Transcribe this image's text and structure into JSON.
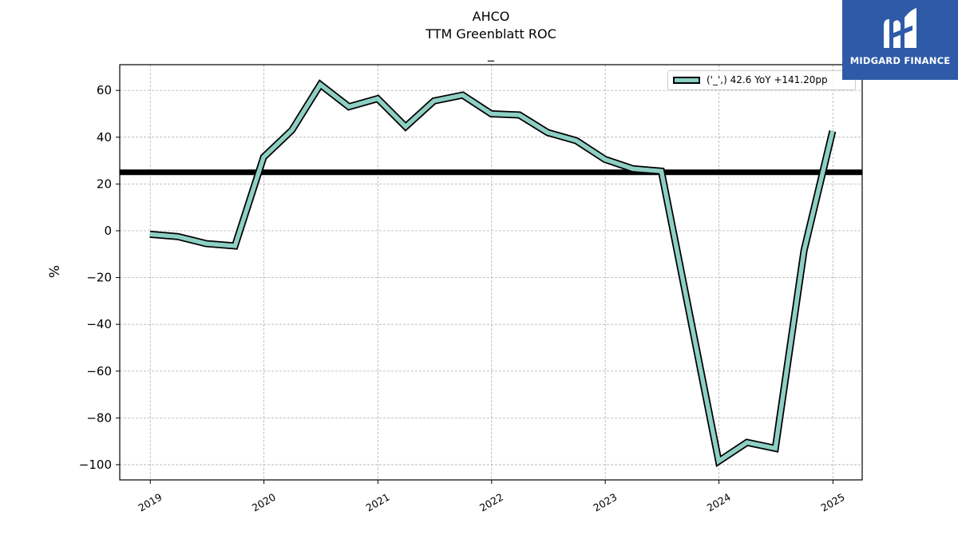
{
  "chart_data": {
    "type": "line",
    "title": "AHCO",
    "subtitle": "TTM Greenblatt ROC",
    "subtitle2": "_",
    "xlabel": "",
    "ylabel": "%",
    "ylim": [
      -106.5,
      71
    ],
    "xlim": [
      "2018-09-25",
      "2025-04-05"
    ],
    "yticks": [
      60,
      40,
      20,
      0,
      -20,
      -40,
      -60,
      -80,
      -100
    ],
    "ytick_labels": [
      "60",
      "40",
      "20",
      "0",
      "−20",
      "−40",
      "−60",
      "−80",
      "−100"
    ],
    "xticks": [
      "2019-01-01",
      "2020-01-01",
      "2021-01-01",
      "2022-01-01",
      "2023-01-01",
      "2024-01-01",
      "2025-01-01"
    ],
    "xtick_labels": [
      "2019",
      "2020",
      "2021",
      "2022",
      "2023",
      "2024",
      "2025"
    ],
    "grid": true,
    "legend_position": "top-right",
    "series": [
      {
        "name": "('_',) 42.6 YoY +141.20pp",
        "color": "#8ecfc4",
        "edge_color": "#000000",
        "x": [
          "2018-12-31",
          "2019-03-31",
          "2019-06-30",
          "2019-09-30",
          "2019-12-31",
          "2020-03-31",
          "2020-06-30",
          "2020-09-30",
          "2020-12-31",
          "2021-03-31",
          "2021-06-30",
          "2021-09-30",
          "2021-12-31",
          "2022-03-31",
          "2022-06-30",
          "2022-09-30",
          "2022-12-31",
          "2023-03-31",
          "2023-06-30",
          "2023-12-31",
          "2024-03-31",
          "2024-06-30",
          "2024-09-30",
          "2024-12-31"
        ],
        "values": [
          -1.5,
          -2.5,
          -5.5,
          -6.5,
          31.5,
          43,
          62.5,
          53,
          56.5,
          44.5,
          55.5,
          58,
          50,
          49.5,
          42,
          38.5,
          30.5,
          26.5,
          25.5,
          -98.5,
          -90.5,
          -93,
          -8.5,
          42.6
        ]
      }
    ],
    "reference_line": {
      "y": 25,
      "color": "#000000"
    }
  },
  "logo": {
    "text": "MIDGARD FINANCE",
    "color": "#2e5aa8"
  }
}
